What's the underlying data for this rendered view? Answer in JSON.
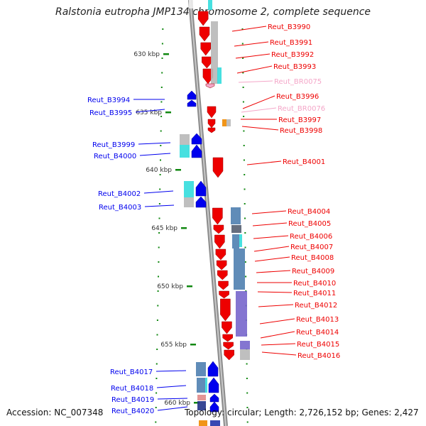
{
  "title": "Ralstonia eutropha JMP134 chromosome 2, complete sequence",
  "accession": "Accession: NC_007348",
  "topology": "Topology: circular; Length: 2,726,152 bp; Genes: 2,427",
  "ticks": [
    "630 kbp",
    "635 kbp",
    "640 kbp",
    "645 kbp",
    "650 kbp",
    "655 kbp",
    "660 kbp"
  ],
  "genes_left": [
    "Reut_B3994",
    "Reut_B3995",
    "Reut_B3999",
    "Reut_B4000",
    "Reut_B4002",
    "Reut_B4003",
    "Reut_B4017",
    "Reut_B4018",
    "Reut_B4019",
    "Reut_B4020"
  ],
  "genes_right": [
    "Reut_B3990",
    "Reut_B3991",
    "Reut_B3992",
    "Reut_B3993",
    "Reut_BR0075",
    "Reut_B3996",
    "Reut_BR0076",
    "Reut_B3997",
    "Reut_B3998",
    "Reut_B4001",
    "Reut_B4004",
    "Reut_B4005",
    "Reut_B4006",
    "Reut_B4007",
    "Reut_B4008",
    "Reut_B4009",
    "Reut_B4010",
    "Reut_B4011",
    "Reut_B4012",
    "Reut_B4013",
    "Reut_B4014",
    "Reut_B4015",
    "Reut_B4016"
  ],
  "colors": {
    "forward_gene": "#0000ee",
    "reverse_gene": "#ee0000",
    "rna_gene": "#f4a6c8",
    "backbone": "#9a9a9a",
    "tick": "#118811",
    "cog_cyan": "#33dddd",
    "cog_steelblue": "#4f7fb0",
    "cog_purple": "#7766cc",
    "cog_grey": "#b8b8b8",
    "cog_orange": "#f08a00"
  }
}
